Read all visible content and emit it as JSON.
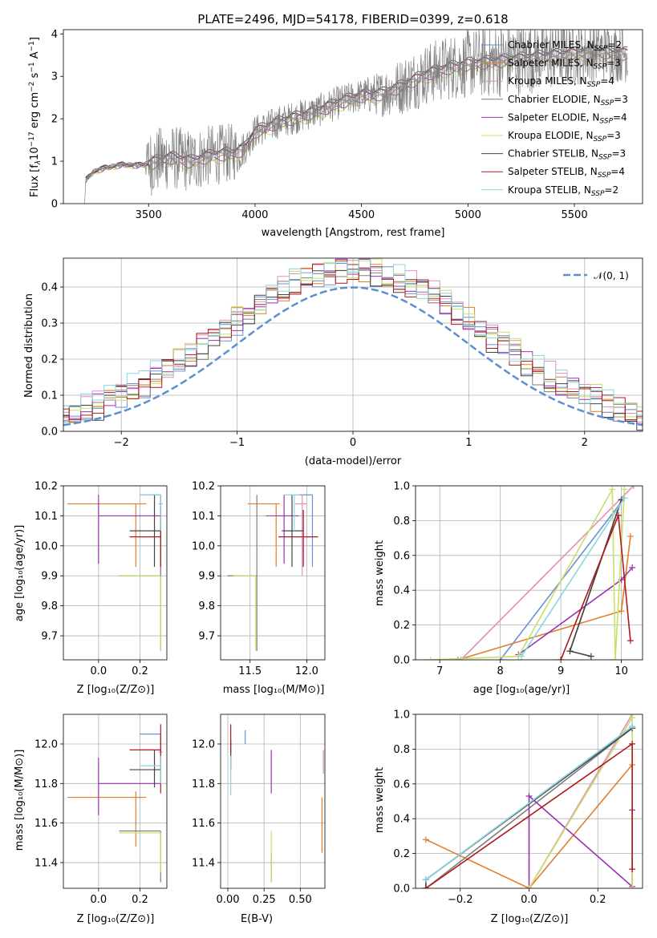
{
  "figure": {
    "title": "PLATE=2496, MJD=54178, FIBERID=0399, z=0.618"
  },
  "colors": {
    "Chabrier MILES": "#6a8fd6",
    "Salpeter MILES": "#e17e2c",
    "Kroupa MILES": "#e08fbf",
    "Chabrier ELODIE": "#7f7f7f",
    "Salpeter ELODIE": "#9b30b0",
    "Kroupa ELODIE": "#c8e066",
    "Chabrier STELIB": "#444444",
    "Salpeter STELIB": "#b0181c",
    "Kroupa STELIB": "#86d8dc",
    "normal": "#5b8fd0",
    "data": "#808080"
  },
  "legend_spectrum": [
    {
      "base": "Chabrier MILES, N",
      "sub": "SSP",
      "tail": "=2",
      "color_key": "Chabrier MILES"
    },
    {
      "base": "Salpeter MILES, N",
      "sub": "SSP",
      "tail": "=3",
      "color_key": "Salpeter MILES"
    },
    {
      "base": "Kroupa MILES, N",
      "sub": "SSP",
      "tail": "=4",
      "color_key": "Kroupa MILES"
    },
    {
      "base": "Chabrier ELODIE, N",
      "sub": "SSP",
      "tail": "=3",
      "color_key": "Chabrier ELODIE"
    },
    {
      "base": "Salpeter ELODIE, N",
      "sub": "SSP",
      "tail": "=4",
      "color_key": "Salpeter ELODIE"
    },
    {
      "base": "Kroupa ELODIE, N",
      "sub": "SSP",
      "tail": "=3",
      "color_key": "Kroupa ELODIE"
    },
    {
      "base": "Chabrier STELIB, N",
      "sub": "SSP",
      "tail": "=3",
      "color_key": "Chabrier STELIB"
    },
    {
      "base": "Salpeter STELIB, N",
      "sub": "SSP",
      "tail": "=4",
      "color_key": "Salpeter STELIB"
    },
    {
      "base": "Kroupa STELIB, N",
      "sub": "SSP",
      "tail": "=2",
      "color_key": "Kroupa STELIB"
    }
  ],
  "labels": {
    "spec_x": "wavelength [Angstrom, rest frame]",
    "spec_y_parts": [
      "Flux [f",
      "λ",
      "10",
      "−17",
      " erg cm",
      "−2",
      " s",
      "−1",
      " A",
      "−1",
      "]"
    ],
    "hist_x": "(data-model)/error",
    "hist_y": "Normed distribution",
    "hist_legend": "𝒩(0, 1)",
    "age_y": "age  [log₁₀(age/yr)]",
    "mass_y": "mass [log₁₀(M/M⊙)]",
    "Z_x": "Z [log₁₀(Z/Z⊙)]",
    "mass_x": "mass [log₁₀(M/M⊙)]",
    "ebv_x": "E(B-V)",
    "mw_y": "mass weight",
    "age_x": "age  [log₁₀(age/yr)]"
  },
  "chart_data": [
    {
      "id": "spectrum",
      "type": "line",
      "xlim": [
        3100,
        5820
      ],
      "ylim": [
        0,
        4.1
      ],
      "xticks": [
        3500,
        4000,
        4500,
        5000,
        5500
      ],
      "yticks": [
        0,
        1,
        2,
        3,
        4
      ],
      "grid": false,
      "legend": "upper right",
      "data_nodes": [
        [
          3200,
          0.0
        ],
        [
          3205,
          0.55
        ],
        [
          3240,
          0.75
        ],
        [
          3300,
          0.85
        ],
        [
          3380,
          0.92
        ],
        [
          3450,
          0.9
        ],
        [
          3500,
          0.95
        ],
        [
          3600,
          1.1
        ],
        [
          3700,
          1.0
        ],
        [
          3800,
          1.15
        ],
        [
          3900,
          1.2
        ],
        [
          3950,
          1.3
        ],
        [
          4000,
          1.7
        ],
        [
          4100,
          1.9
        ],
        [
          4200,
          2.05
        ],
        [
          4300,
          2.2
        ],
        [
          4400,
          2.4
        ],
        [
          4500,
          2.55
        ],
        [
          4600,
          2.6
        ],
        [
          4700,
          2.8
        ],
        [
          4800,
          3.05
        ],
        [
          4900,
          3.2
        ],
        [
          5000,
          3.3
        ],
        [
          5100,
          3.35
        ],
        [
          5200,
          3.4
        ],
        [
          5300,
          3.45
        ],
        [
          5400,
          3.5
        ],
        [
          5500,
          3.55
        ],
        [
          5600,
          3.6
        ],
        [
          5700,
          3.55
        ]
      ],
      "noise_by_wavelength": [
        [
          3200,
          0.04
        ],
        [
          3480,
          0.04
        ],
        [
          3500,
          0.8
        ],
        [
          3900,
          0.7
        ],
        [
          3950,
          0.4
        ],
        [
          4500,
          0.4
        ],
        [
          4700,
          0.7
        ],
        [
          5200,
          0.9
        ],
        [
          5700,
          0.7
        ]
      ],
      "model_offsets": [
        0.05,
        -0.08,
        0.0,
        0.03,
        -0.12,
        -0.18,
        0.1,
        0.06,
        -0.03
      ]
    },
    {
      "id": "residual_hist",
      "type": "histogram",
      "xlim": [
        -2.5,
        2.5
      ],
      "ylim": [
        0,
        0.48
      ],
      "xticks": [
        -2,
        -1,
        0,
        1,
        2
      ],
      "yticks": [
        0,
        0.1,
        0.2,
        0.3,
        0.4
      ],
      "grid": true,
      "legend": "upper right",
      "bin_width": 0.1
    },
    {
      "id": "age_vs_Z",
      "type": "errorbar",
      "xlim": [
        -0.17,
        0.33
      ],
      "ylim": [
        9.62,
        10.2
      ],
      "xticks": [
        0.0,
        0.2
      ],
      "yticks": [
        9.7,
        9.8,
        9.9,
        10.0,
        10.1,
        10.2
      ],
      "grid": true
    },
    {
      "id": "age_vs_mass",
      "type": "errorbar",
      "xlim": [
        11.24,
        12.16
      ],
      "ylim": [
        9.62,
        10.2
      ],
      "xticks": [
        11.5,
        12.0
      ],
      "yticks": [
        9.7,
        9.8,
        9.9,
        10.0,
        10.1,
        10.2
      ],
      "grid": true
    },
    {
      "id": "mass_weight_vs_age",
      "type": "line",
      "xlim": [
        6.6,
        10.35
      ],
      "ylim": [
        0,
        1.0
      ],
      "xticks": [
        7,
        8,
        9,
        10
      ],
      "yticks": [
        0.0,
        0.2,
        0.4,
        0.6,
        0.8,
        1.0
      ],
      "grid": true,
      "series": [
        {
          "color_key": "Chabrier MILES",
          "x": [
            8.0,
            10.05
          ],
          "y": [
            0.0,
            0.93
          ]
        },
        {
          "color_key": "Salpeter MILES",
          "x": [
            7.3,
            10.0,
            10.15
          ],
          "y": [
            0.0,
            0.28,
            0.71
          ]
        },
        {
          "color_key": "Kroupa MILES",
          "x": [
            7.35,
            10.2
          ],
          "y": [
            0.0,
            1.0
          ]
        },
        {
          "color_key": "Chabrier ELODIE",
          "x": [
            9.15,
            10.0
          ],
          "y": [
            0.05,
            0.92
          ]
        },
        {
          "color_key": "Salpeter ELODIE",
          "x": [
            8.3,
            10.0,
            10.18
          ],
          "y": [
            0.03,
            0.46,
            0.53
          ]
        },
        {
          "color_key": "Kroupa ELODIE",
          "x": [
            6.85,
            8.3,
            9.85,
            9.9,
            10.05
          ],
          "y": [
            0.0,
            0.02,
            0.98,
            0.0,
            0.98
          ]
        },
        {
          "color_key": "Chabrier STELIB",
          "x": [
            9.5,
            9.15,
            10.0
          ],
          "y": [
            0.02,
            0.05,
            0.92
          ]
        },
        {
          "color_key": "Salpeter STELIB",
          "x": [
            9.0,
            9.95,
            10.15
          ],
          "y": [
            0.0,
            0.83,
            0.11
          ]
        },
        {
          "color_key": "Kroupa STELIB",
          "x": [
            8.35,
            10.05
          ],
          "y": [
            0.02,
            0.93
          ]
        }
      ]
    },
    {
      "id": "mass_vs_Z",
      "type": "errorbar",
      "xlim": [
        -0.17,
        0.33
      ],
      "ylim": [
        11.27,
        12.15
      ],
      "xticks": [
        0.0,
        0.2
      ],
      "yticks": [
        11.4,
        11.6,
        11.8,
        12.0
      ],
      "grid": true
    },
    {
      "id": "mass_vs_ebv",
      "type": "errorbar",
      "xlim": [
        -0.05,
        0.67
      ],
      "ylim": [
        11.27,
        12.15
      ],
      "xticks": [
        0.0,
        0.25,
        0.5
      ],
      "xtick_labels": [
        "0.00",
        "0.25",
        "0.50"
      ],
      "yticks": [
        11.4,
        11.6,
        11.8,
        12.0
      ],
      "grid": true
    },
    {
      "id": "mass_weight_vs_Z",
      "type": "line",
      "xlim": [
        -0.33,
        0.33
      ],
      "ylim": [
        0,
        1.0
      ],
      "xticks": [
        -0.2,
        0.0,
        0.2
      ],
      "yticks": [
        0.0,
        0.2,
        0.4,
        0.6,
        0.8,
        1.0
      ],
      "grid": true,
      "series": [
        {
          "color_key": "Chabrier MILES",
          "x": [
            -0.3,
            0.3
          ],
          "y": [
            0.05,
            0.93
          ]
        },
        {
          "color_key": "Salpeter MILES",
          "x": [
            -0.3,
            0.0,
            0.3
          ],
          "y": [
            0.28,
            0.0,
            0.71
          ]
        },
        {
          "color_key": "Kroupa MILES",
          "x": [
            0.0,
            0.3
          ],
          "y": [
            0.0,
            1.0
          ]
        },
        {
          "color_key": "Chabrier ELODIE",
          "x": [
            -0.3,
            0.3
          ],
          "y": [
            0.0,
            0.92
          ]
        },
        {
          "color_key": "Salpeter ELODIE",
          "x": [
            0.0,
            0.0,
            0.3,
            0.3
          ],
          "y": [
            0.0,
            0.53,
            0.01,
            0.45
          ]
        },
        {
          "color_key": "Kroupa ELODIE",
          "x": [
            0.0,
            0.3,
            0.3
          ],
          "y": [
            0.0,
            0.98,
            0.0
          ]
        },
        {
          "color_key": "Chabrier STELIB",
          "x": [
            -0.3,
            -0.3,
            0.3
          ],
          "y": [
            0.0,
            0.05,
            0.92
          ]
        },
        {
          "color_key": "Salpeter STELIB",
          "x": [
            -0.3,
            0.3,
            0.3
          ],
          "y": [
            0.0,
            0.83,
            0.11
          ]
        },
        {
          "color_key": "Kroupa STELIB",
          "x": [
            -0.3,
            0.3
          ],
          "y": [
            0.05,
            0.93
          ]
        }
      ]
    }
  ],
  "fit_results": [
    {
      "color_key": "Chabrier MILES",
      "Z": 0.3,
      "Z_lo": 0.2,
      "Z_hi": 0.3,
      "age": 10.17,
      "age_lo": 9.93,
      "age_hi": 10.17,
      "mass": 12.05,
      "mass_lo": 11.93,
      "mass_hi": 12.05,
      "ebv": 0.12,
      "ebv_lo": 0.12,
      "ebv_hi": 0.12,
      "mass_err": [
        12.0,
        12.07
      ]
    },
    {
      "color_key": "Salpeter MILES",
      "Z": 0.18,
      "Z_lo": -0.15,
      "Z_hi": 0.23,
      "age": 10.14,
      "age_lo": 9.93,
      "age_hi": 10.14,
      "mass": 11.73,
      "mass_lo": 11.48,
      "mass_hi": 11.76,
      "ebv": 0.65,
      "ebv_lo": 0.65,
      "ebv_hi": 0.65,
      "mass_err": [
        11.45,
        11.73
      ]
    },
    {
      "color_key": "Kroupa MILES",
      "Z": 0.3,
      "Z_lo": 0.29,
      "Z_hi": 0.31,
      "age": 10.14,
      "age_lo": 9.9,
      "age_hi": 10.17,
      "mass": 11.96,
      "mass_lo": 11.9,
      "mass_hi": 12.0,
      "ebv": 0.66,
      "ebv_lo": 0.66,
      "ebv_hi": 0.66,
      "mass_err": [
        11.85,
        11.97
      ]
    },
    {
      "color_key": "Chabrier ELODIE",
      "Z": 0.3,
      "Z_lo": 0.1,
      "Z_hi": 0.3,
      "age": 9.9,
      "age_lo": 9.65,
      "age_hi": 10.17,
      "mass": 11.56,
      "mass_lo": 11.3,
      "mass_hi": 11.56,
      "ebv": 0.3,
      "ebv_lo": 0.3,
      "ebv_hi": 0.3,
      "mass_err": [
        11.3,
        11.45
      ]
    },
    {
      "color_key": "Salpeter ELODIE",
      "Z": 0.0,
      "Z_lo": 0.0,
      "Z_hi": 0.3,
      "age": 10.1,
      "age_lo": 9.94,
      "age_hi": 10.17,
      "mass": 11.8,
      "mass_lo": 11.64,
      "mass_hi": 11.93,
      "ebv": 0.3,
      "ebv_lo": 0.3,
      "ebv_hi": 0.3,
      "mass_err": [
        11.75,
        11.97
      ]
    },
    {
      "color_key": "Kroupa ELODIE",
      "Z": 0.3,
      "Z_lo": 0.1,
      "Z_hi": 0.3,
      "age": 9.9,
      "age_lo": 9.65,
      "age_hi": 9.9,
      "mass": 11.55,
      "mass_lo": 11.35,
      "mass_hi": 11.55,
      "ebv": 0.3,
      "ebv_lo": 0.3,
      "ebv_hi": 0.3,
      "mass_err": [
        11.3,
        11.56
      ]
    },
    {
      "color_key": "Chabrier STELIB",
      "Z": 0.27,
      "Z_lo": 0.15,
      "Z_hi": 0.3,
      "age": 10.05,
      "age_lo": 9.93,
      "age_hi": 10.17,
      "mass": 11.87,
      "mass_lo": 11.78,
      "mass_hi": 11.97,
      "ebv": 0.02,
      "ebv_lo": 0.02,
      "ebv_hi": 0.02,
      "mass_err": [
        11.87,
        12.02
      ]
    },
    {
      "color_key": "Salpeter STELIB",
      "Z": 0.3,
      "Z_lo": 0.15,
      "Z_hi": 0.3,
      "age": 10.03,
      "age_lo": 9.93,
      "age_hi": 10.12,
      "mass": 11.97,
      "mass_lo": 11.75,
      "mass_hi": 12.1,
      "ebv": 0.02,
      "ebv_lo": 0.02,
      "ebv_hi": 0.02,
      "mass_err": [
        11.95,
        12.1
      ]
    },
    {
      "color_key": "Kroupa STELIB",
      "Z": 0.3,
      "Z_lo": 0.2,
      "Z_hi": 0.3,
      "age": 10.17,
      "age_lo": 10.05,
      "age_hi": 10.17,
      "mass": 11.89,
      "mass_lo": 11.8,
      "mass_hi": 11.94,
      "ebv": 0.02,
      "ebv_lo": 0.02,
      "ebv_hi": 0.02,
      "mass_err": [
        11.74,
        11.94
      ]
    }
  ]
}
